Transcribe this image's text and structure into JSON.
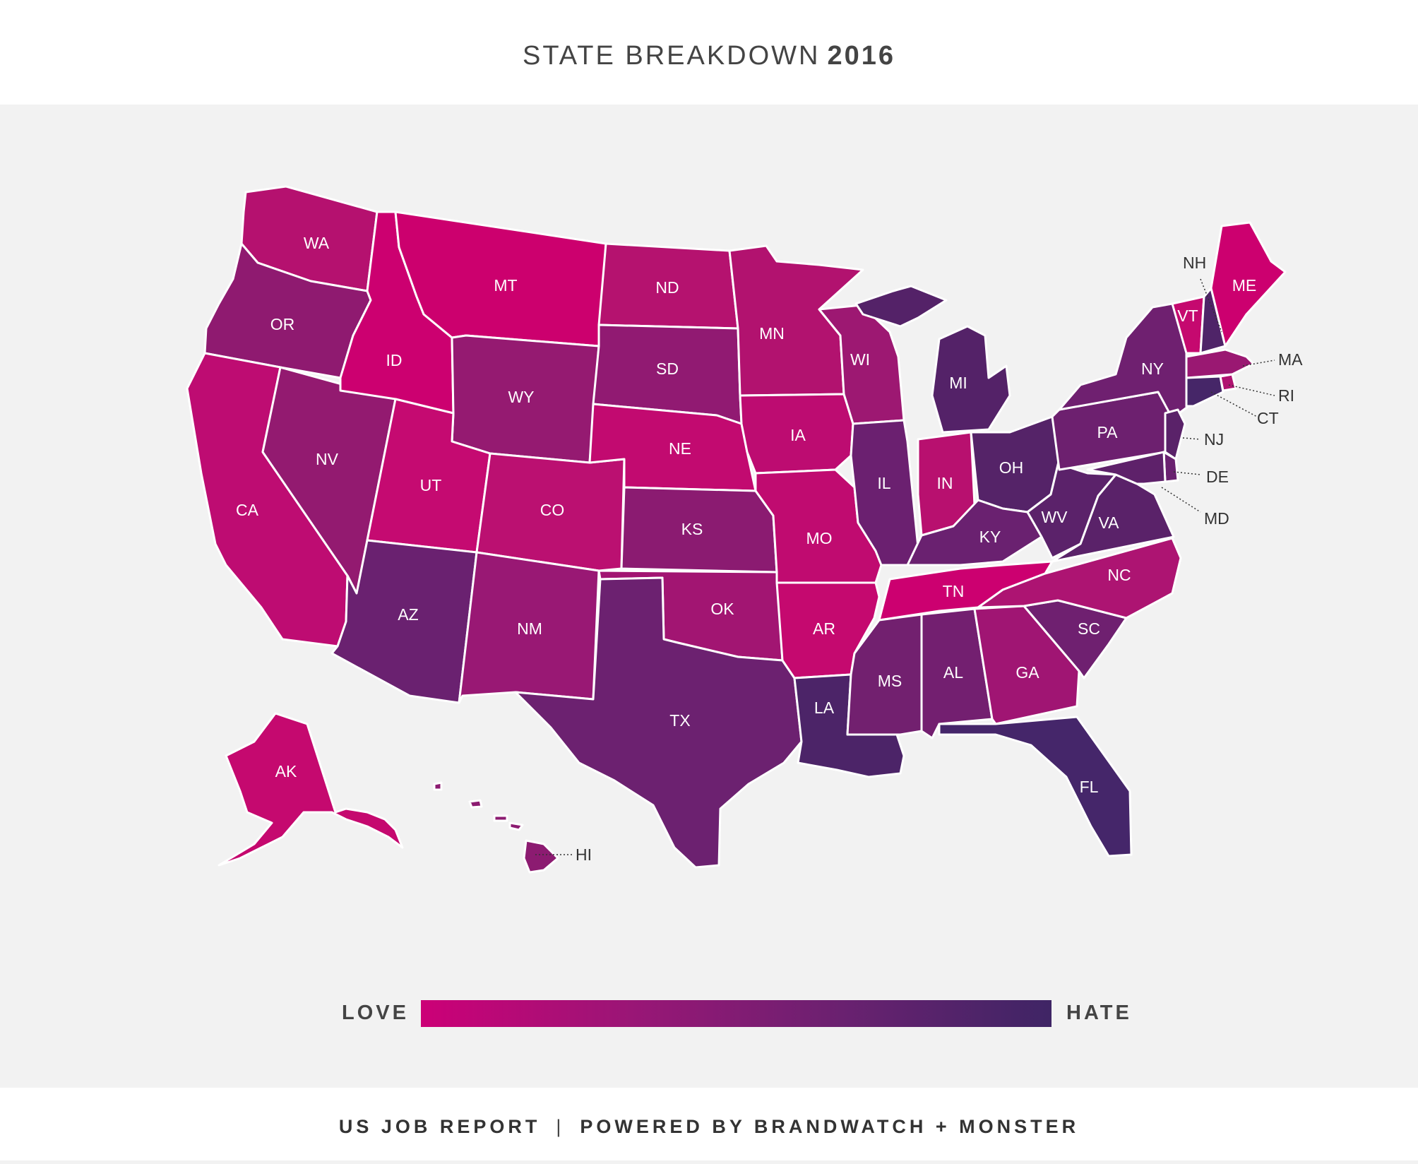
{
  "title": {
    "main": "STATE BREAKDOWN",
    "year": "2016"
  },
  "legend": {
    "low_label": "LOVE",
    "high_label": "HATE",
    "colors": [
      "#cc0077",
      "#9a1676",
      "#6a2170",
      "#3f2565"
    ]
  },
  "footer": {
    "left": "US JOB REPORT",
    "separator": "|",
    "right": "POWERED BY BRANDWATCH + MONSTER"
  },
  "colors": {
    "background": "#f2f2f2",
    "panel": "#ffffff",
    "state_border": "#ffffff"
  },
  "states": [
    {
      "code": "WA",
      "color": "#b5116f"
    },
    {
      "code": "OR",
      "color": "#8f1a70"
    },
    {
      "code": "CA",
      "color": "#be0c72"
    },
    {
      "code": "NV",
      "color": "#931a70"
    },
    {
      "code": "ID",
      "color": "#cc0070"
    },
    {
      "code": "MT",
      "color": "#cc006e"
    },
    {
      "code": "WY",
      "color": "#951a71"
    },
    {
      "code": "UT",
      "color": "#c50a71"
    },
    {
      "code": "AZ",
      "color": "#6a2170"
    },
    {
      "code": "CO",
      "color": "#bb1071"
    },
    {
      "code": "NM",
      "color": "#991874"
    },
    {
      "code": "ND",
      "color": "#b5126f"
    },
    {
      "code": "SD",
      "color": "#911a72"
    },
    {
      "code": "NE",
      "color": "#c20a70"
    },
    {
      "code": "KS",
      "color": "#8b1b71"
    },
    {
      "code": "OK",
      "color": "#a21572"
    },
    {
      "code": "TX",
      "color": "#6c2170"
    },
    {
      "code": "MN",
      "color": "#b2126f"
    },
    {
      "code": "IA",
      "color": "#bd0c71"
    },
    {
      "code": "MO",
      "color": "#c00b70"
    },
    {
      "code": "AR",
      "color": "#c5096f"
    },
    {
      "code": "LA",
      "color": "#4c2468"
    },
    {
      "code": "WI",
      "color": "#9d1872"
    },
    {
      "code": "IL",
      "color": "#6b2070"
    },
    {
      "code": "MI",
      "color": "#542268"
    },
    {
      "code": "IN",
      "color": "#b8106f"
    },
    {
      "code": "OH",
      "color": "#552368"
    },
    {
      "code": "KY",
      "color": "#6a2170"
    },
    {
      "code": "TN",
      "color": "#cc0070"
    },
    {
      "code": "MS",
      "color": "#72206f"
    },
    {
      "code": "AL",
      "color": "#731f70"
    },
    {
      "code": "GA",
      "color": "#a01573"
    },
    {
      "code": "FL",
      "color": "#45266a"
    },
    {
      "code": "SC",
      "color": "#6f2070"
    },
    {
      "code": "NC",
      "color": "#ad1472"
    },
    {
      "code": "VA",
      "color": "#5a2269"
    },
    {
      "code": "WV",
      "color": "#5b226a"
    },
    {
      "code": "PA",
      "color": "#6d206f"
    },
    {
      "code": "NY",
      "color": "#6f2070"
    },
    {
      "code": "VT",
      "color": "#c5096f"
    },
    {
      "code": "NH",
      "color": "#4f2468"
    },
    {
      "code": "ME",
      "color": "#cc006f"
    },
    {
      "code": "MA",
      "color": "#9a1872"
    },
    {
      "code": "RI",
      "color": "#b01270"
    },
    {
      "code": "CT",
      "color": "#462668"
    },
    {
      "code": "NJ",
      "color": "#5a2269"
    },
    {
      "code": "DE",
      "color": "#6a2170"
    },
    {
      "code": "MD",
      "color": "#5e216a"
    },
    {
      "code": "AK",
      "color": "#c5096f"
    },
    {
      "code": "HI",
      "color": "#8c1b71"
    }
  ]
}
